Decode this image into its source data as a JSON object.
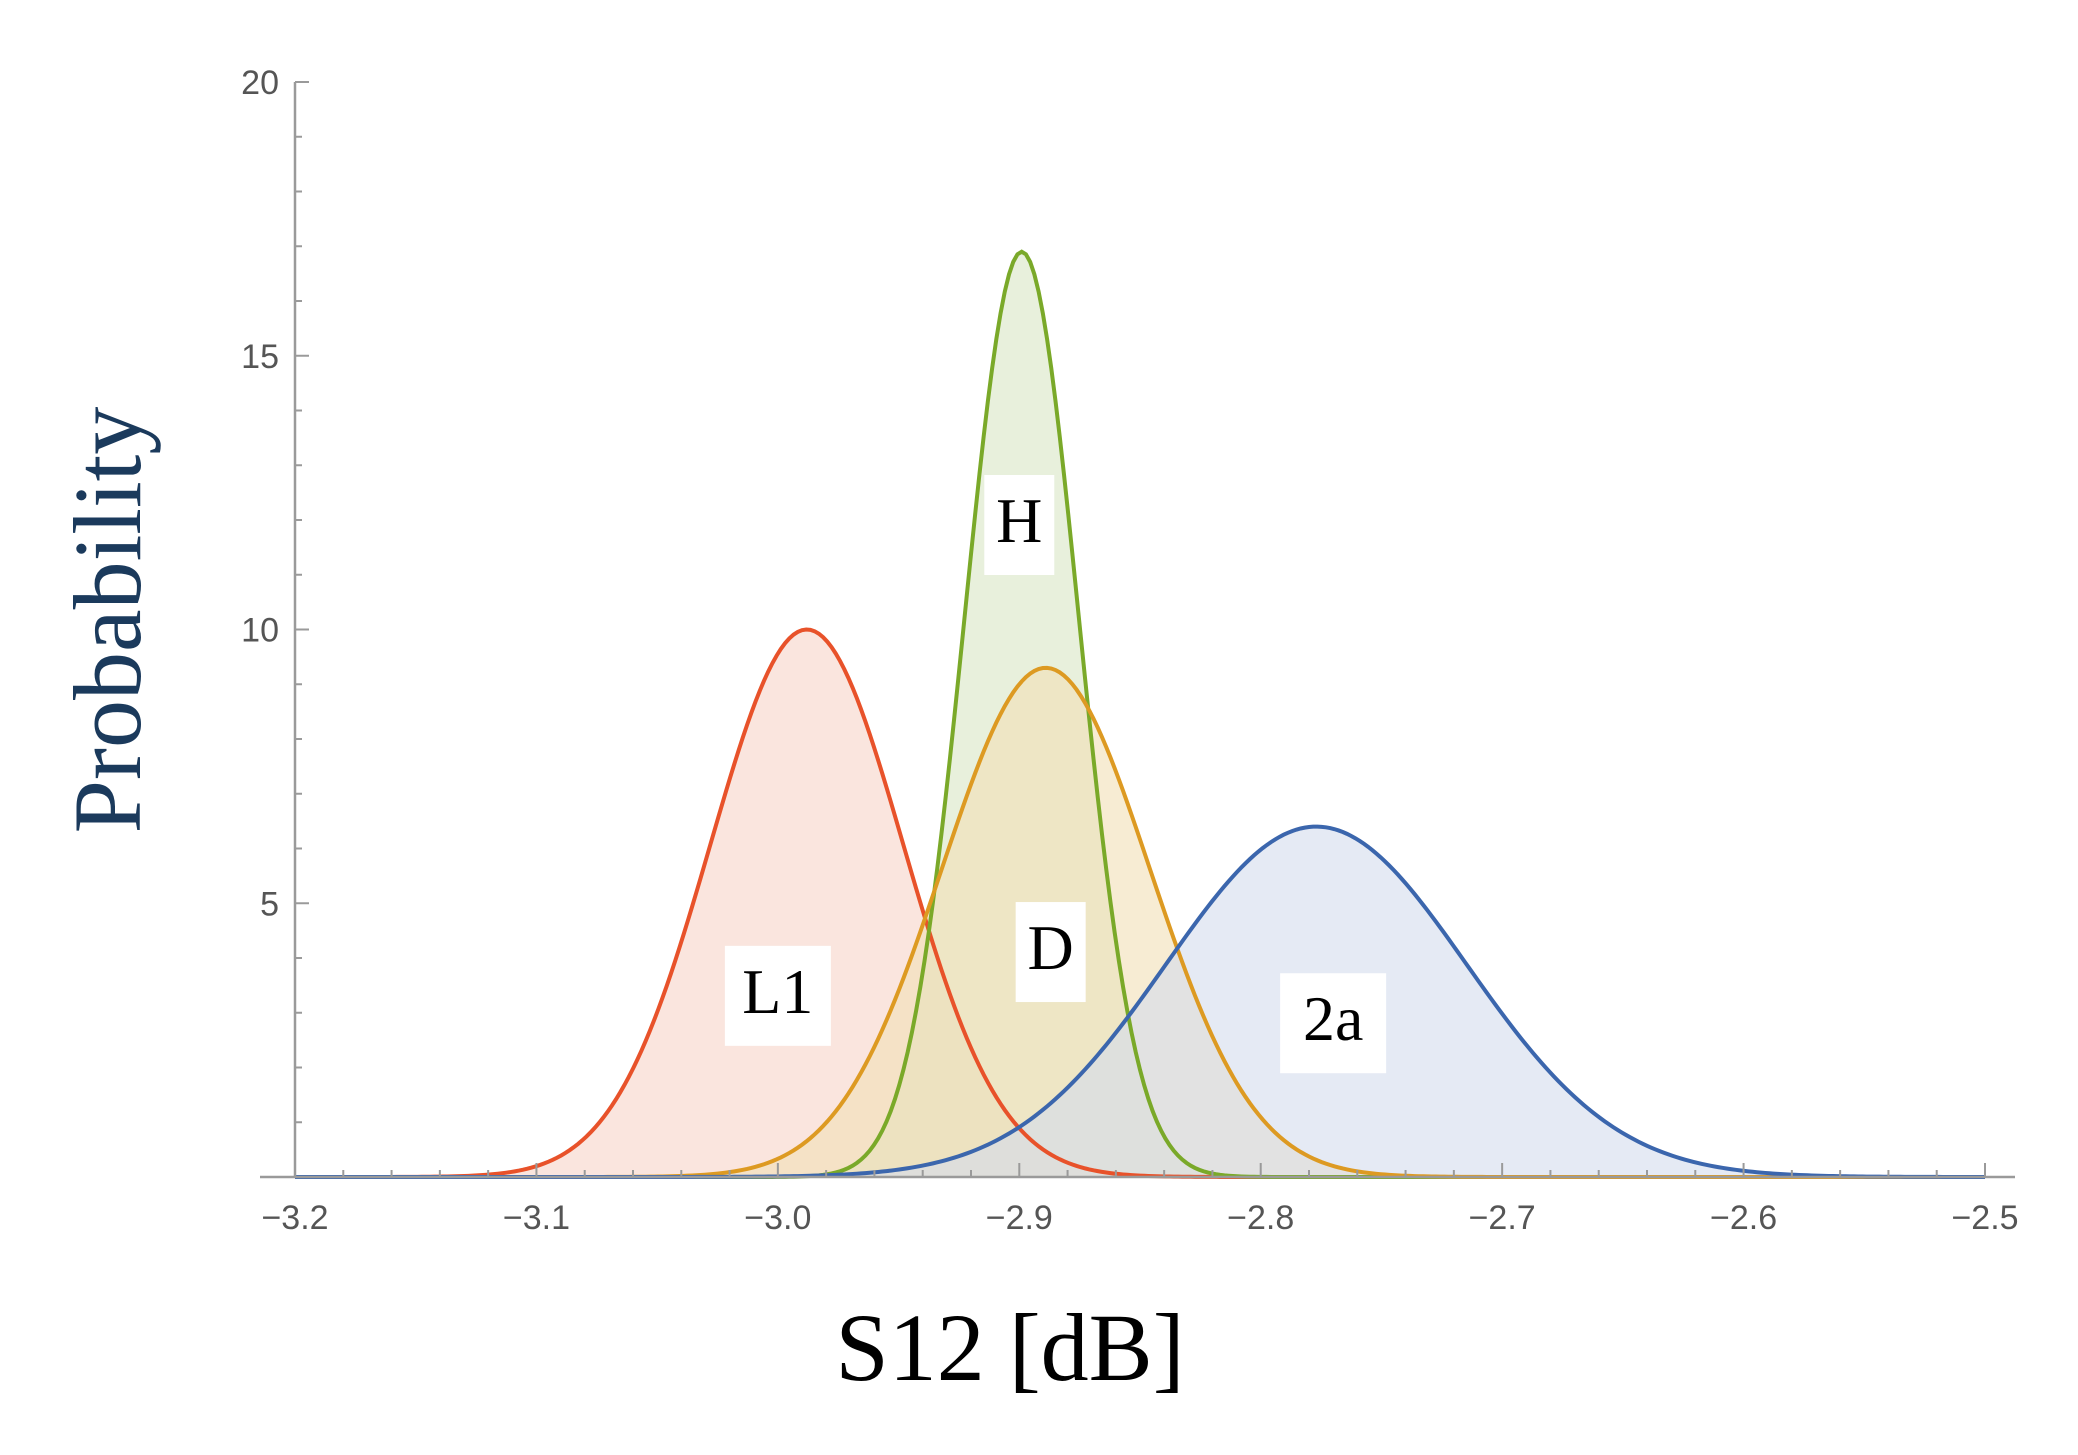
{
  "chart_data": {
    "type": "area",
    "xlabel": "S12 [dB]",
    "ylabel": "Probability",
    "xlim": [
      -3.2,
      -2.5
    ],
    "ylim": [
      0,
      20
    ],
    "x_ticks": [
      -3.2,
      -3.1,
      -3.0,
      -2.9,
      -2.8,
      -2.7,
      -2.6,
      -2.5
    ],
    "x_tick_labels": [
      "−3.2",
      "−3.1",
      "−3.0",
      "−2.9",
      "−2.8",
      "−2.7",
      "−2.6",
      "−2.5"
    ],
    "y_ticks": [
      5,
      10,
      15,
      20
    ],
    "y_tick_labels": [
      "5",
      "10",
      "15",
      "20"
    ],
    "grid": false,
    "series": [
      {
        "name": "L1",
        "distribution": "normal",
        "mean": -2.988,
        "peak": 10.0,
        "std": 0.04,
        "color": "#e8522a",
        "fill": "#f6d3c8",
        "label_x": -3.0,
        "label_y": 3.4
      },
      {
        "name": "H",
        "distribution": "normal",
        "mean": -2.899,
        "peak": 16.9,
        "std": 0.0236,
        "color": "#7aa929",
        "fill": "#d9e6c4",
        "label_x": -2.9,
        "label_y": 12.0
      },
      {
        "name": "D",
        "distribution": "normal",
        "mean": -2.889,
        "peak": 9.3,
        "std": 0.043,
        "color": "#dd9a22",
        "fill": "#f2e0b6",
        "label_x": -2.887,
        "label_y": 4.2
      },
      {
        "name": "2a",
        "distribution": "normal",
        "mean": -2.777,
        "peak": 6.4,
        "std": 0.0623,
        "color": "#3b66ad",
        "fill": "#d3dcec",
        "label_x": -2.77,
        "label_y": 2.9
      }
    ]
  }
}
